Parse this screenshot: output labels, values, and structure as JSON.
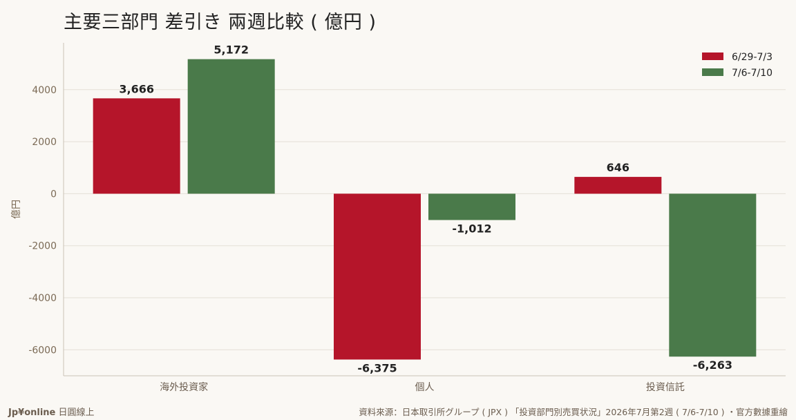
{
  "title": "主要三部門 差引き 兩週比較 ( 億円 )",
  "footer": {
    "brand": "Jp¥online",
    "brand_suffix": "日圓線上",
    "source": "資料來源：日本取引所グループ ( JPX ) 「投資部門別売買状況」2026年7月第2週 ( 7/6-7/10 ) ・官方數據重繪"
  },
  "chart_data": {
    "type": "bar",
    "title": "主要三部門 差引き 兩週比較 ( 億円 )",
    "xlabel": "",
    "ylabel": "億円",
    "categories": [
      "海外投資家",
      "個人",
      "投資信託"
    ],
    "series": [
      {
        "name": "6/29-7/3",
        "values": [
          3666,
          -6375,
          646
        ],
        "labels": [
          "3,666",
          "-6,375",
          "646"
        ],
        "color": "#b5152a"
      },
      {
        "name": "7/6-7/10",
        "values": [
          5172,
          -1012,
          -6263
        ],
        "labels": [
          "5,172",
          "-1,012",
          "-6,263"
        ],
        "color": "#4a7a4a"
      }
    ],
    "ylim": [
      -7000,
      5800
    ],
    "yticks": [
      4000,
      2000,
      0,
      -2000,
      -4000,
      -6000
    ],
    "ytick_labels": [
      "4000",
      "2000",
      "0",
      "-2000",
      "-4000",
      "-6000"
    ],
    "grid": true,
    "legend_position": "top-right"
  }
}
